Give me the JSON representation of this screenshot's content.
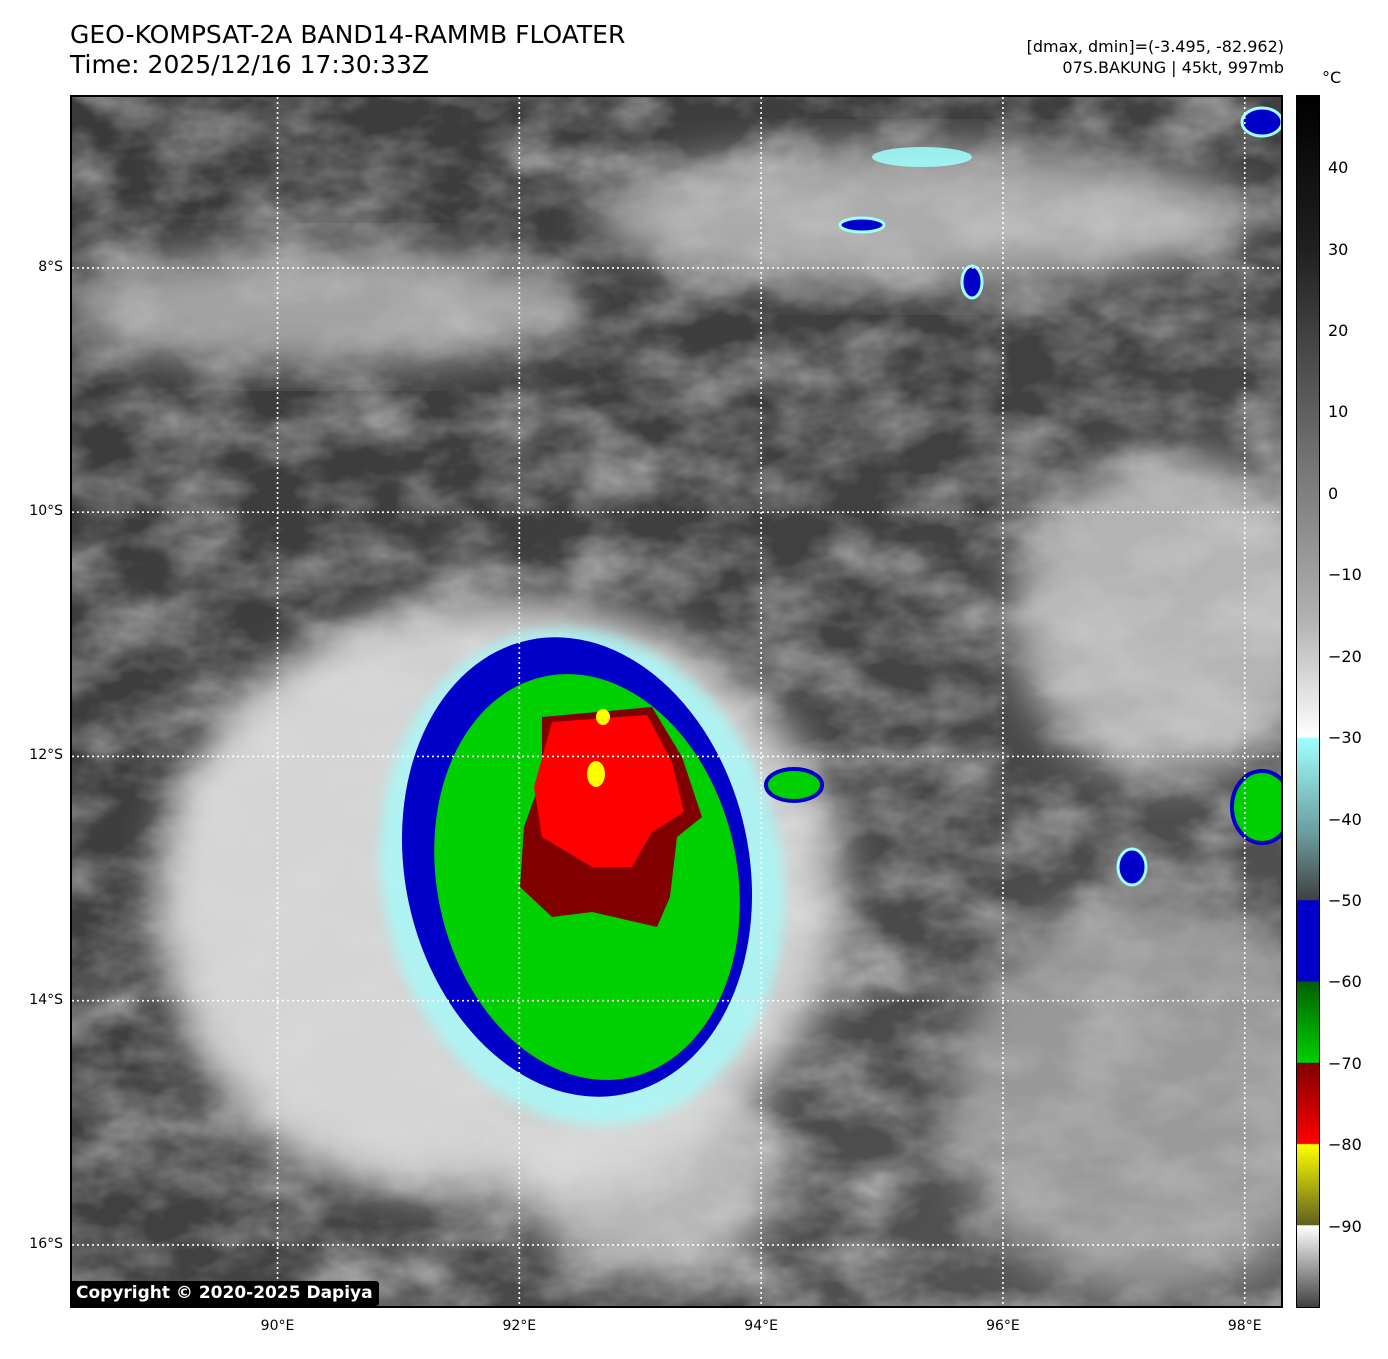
{
  "header": {
    "title_line1": "GEO-KOMPSAT-2A BAND14-RAMMB FLOATER",
    "title_line2": "Time: 2025/12/16 17:30:33Z",
    "info_line1": "[dmax, dmin]=(-3.495, -82.962)",
    "info_line2": "07S.BAKUNG | 45kt, 997mb"
  },
  "map": {
    "lat_range": [
      -16.5,
      -6.6
    ],
    "lon_range": [
      88.3,
      98.3
    ],
    "lat_ticks": [
      {
        "value": -8,
        "label": "8°S"
      },
      {
        "value": -10,
        "label": "10°S"
      },
      {
        "value": -12,
        "label": "12°S"
      },
      {
        "value": -14,
        "label": "14°S"
      },
      {
        "value": -16,
        "label": "16°S"
      }
    ],
    "lon_ticks": [
      {
        "value": 90,
        "label": "90°E"
      },
      {
        "value": 92,
        "label": "92°E"
      },
      {
        "value": 94,
        "label": "94°E"
      },
      {
        "value": 96,
        "label": "96°E"
      },
      {
        "value": 98,
        "label": "98°E"
      }
    ],
    "storm_center": {
      "lat": -12.2,
      "lon": 92.6
    },
    "gridline_style": "dotted white"
  },
  "colorbar": {
    "unit": "°C",
    "range": [
      -100,
      49
    ],
    "ticks": [
      40,
      30,
      20,
      10,
      0,
      -10,
      -20,
      -30,
      -40,
      -50,
      -60,
      -70,
      -80,
      -90
    ],
    "tick_labels": [
      "40",
      "30",
      "20",
      "10",
      "0",
      "−10",
      "−20",
      "−30",
      "−40",
      "−50",
      "−60",
      "−70",
      "−80",
      "−90"
    ],
    "colors": {
      "warm_black": "#000000",
      "gray_mid": "#808080",
      "white": "#ffffff",
      "cyan": "#a0ffff",
      "blue": "#0000c8",
      "green": "#00d000",
      "dark_red": "#800000",
      "red": "#ff0000",
      "yellow": "#ffff00",
      "olive": "#606020"
    }
  },
  "copyright": "Copyright © 2020-2025 Dapiya"
}
